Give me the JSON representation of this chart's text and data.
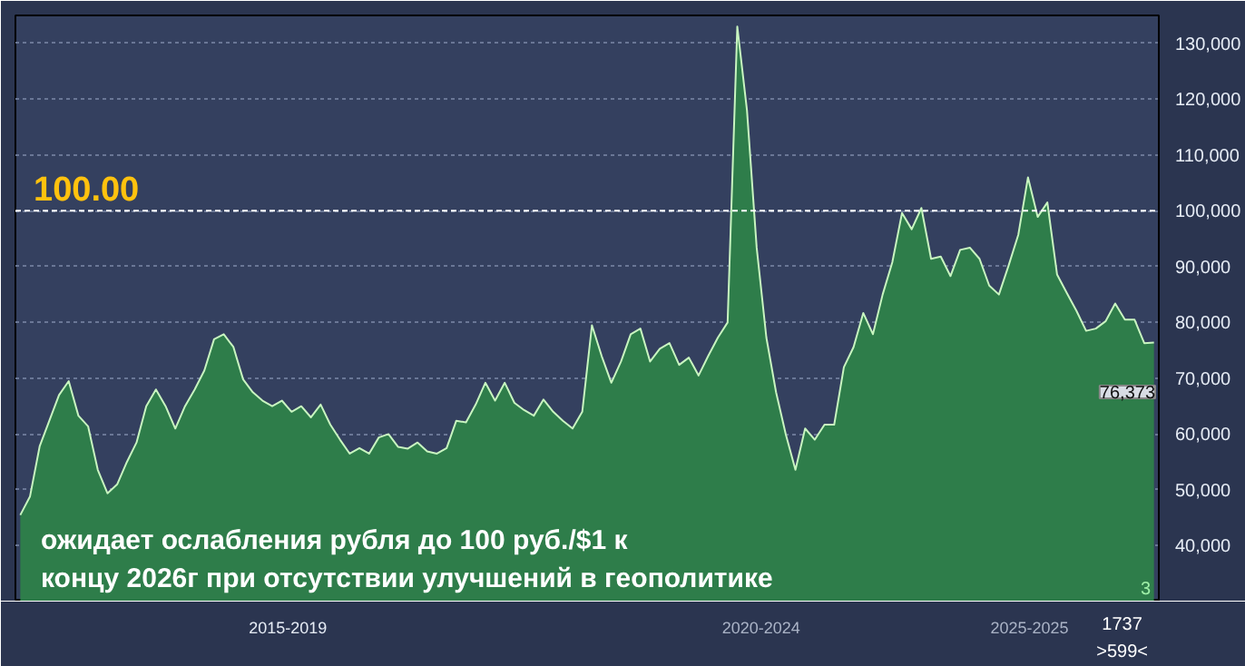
{
  "chart_data": {
    "type": "area",
    "categories": [
      null,
      null,
      null,
      null,
      null,
      null,
      null,
      null,
      null,
      null,
      null,
      null,
      null,
      null,
      null,
      null,
      null,
      null,
      null,
      null,
      null,
      null,
      null,
      null,
      null,
      null,
      null,
      null,
      null,
      null,
      null,
      null,
      null,
      null,
      null,
      null,
      null,
      null,
      null,
      null,
      null,
      null,
      null,
      null,
      null,
      null,
      null,
      null,
      null,
      null,
      null,
      null,
      null,
      null,
      null,
      null,
      null,
      null,
      null,
      null,
      null,
      null,
      null,
      null,
      null,
      null,
      null,
      null,
      null,
      null,
      null,
      null,
      null,
      null,
      null,
      null,
      null,
      null,
      null,
      null,
      null,
      null,
      null,
      null,
      null,
      null,
      null,
      null,
      null,
      null,
      null,
      null,
      null,
      null,
      null,
      null,
      null,
      null,
      null,
      null,
      null,
      null,
      null,
      null,
      null,
      null,
      null,
      null,
      null,
      null,
      null,
      null,
      null,
      null,
      null,
      null,
      null,
      null
    ],
    "series": [
      {
        "color": "#2e7d4a",
        "values": [
          45500,
          48800,
          57800,
          62400,
          67000,
          69500,
          63300,
          61400,
          53600,
          49400,
          51000,
          55000,
          58500,
          65000,
          68000,
          65000,
          61000,
          65000,
          68000,
          71400,
          77000,
          77900,
          75600,
          69800,
          67500,
          66000,
          65000,
          66000,
          64000,
          65000,
          63000,
          65300,
          61700,
          59000,
          56500,
          57500,
          56500,
          59400,
          60000,
          57700,
          57400,
          58500,
          56900,
          56500,
          57500,
          62400,
          62100,
          65300,
          69200,
          66000,
          69200,
          65600,
          64300,
          63300,
          66200,
          64000,
          62400,
          61000,
          64000,
          79500,
          74000,
          69200,
          73000,
          77900,
          78900,
          73000,
          75300,
          76300,
          72400,
          73700,
          70500,
          74000,
          77300,
          80000,
          133000,
          118000,
          93400,
          77300,
          67500,
          60000,
          53600,
          61000,
          59000,
          61700,
          61700,
          72000,
          75600,
          81700,
          77900,
          85000,
          90800,
          99600,
          96700,
          100500,
          91400,
          91800,
          88300,
          93000,
          93400,
          91400,
          86600,
          85000,
          90200,
          95700,
          106000,
          98900,
          101500,
          88600,
          85300,
          82100,
          78500,
          78900,
          80200,
          83400,
          80500,
          80500,
          76300,
          76400
        ]
      }
    ],
    "ylim": [
      30000,
      135000
    ],
    "yticks": [
      {
        "value": 40000,
        "label": "40,000"
      },
      {
        "value": 50000,
        "label": "50,000"
      },
      {
        "value": 60000,
        "label": "60,000"
      },
      {
        "value": 70000,
        "label": "70,000"
      },
      {
        "value": 80000,
        "label": "80,000"
      },
      {
        "value": 90000,
        "label": "90,000"
      },
      {
        "value": 100000,
        "label": "100,000"
      },
      {
        "value": 110000,
        "label": "110,000"
      },
      {
        "value": 120000,
        "label": "120,000"
      },
      {
        "value": 130000,
        "label": "130,000"
      }
    ],
    "grid": "y",
    "ref_lines": [
      {
        "axis": "y",
        "value": 100000,
        "color": "#ffffff",
        "line_style": "dashed"
      }
    ],
    "annotations": [
      "100.00",
      "76,373",
      "ожидает ослабления рубля до 100 руб./$1 к\nконцу 2026г при отсутствии улучшений в геополитике",
      "2015-2019",
      "2020-2024",
      "2025-2025",
      "3",
      "1737",
      ">599<"
    ]
  }
}
